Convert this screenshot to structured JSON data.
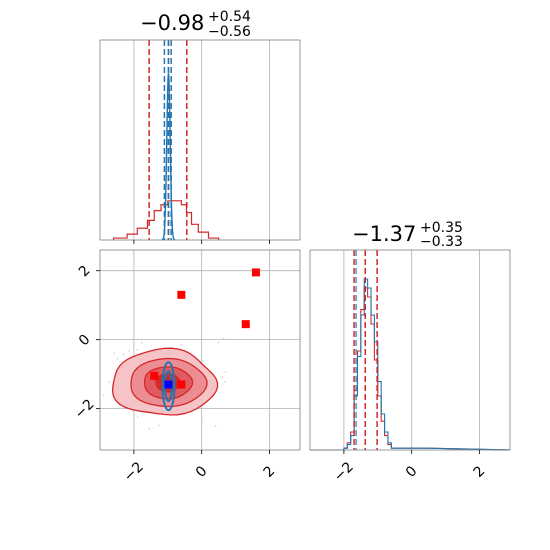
{
  "chart_data": {
    "type": "corner",
    "titles": [
      {
        "value": "−0.98",
        "plus": "+0.54",
        "minus": "−0.56"
      },
      {
        "value": "−1.37",
        "plus": "+0.35",
        "minus": "−0.33"
      }
    ],
    "xlim": [
      -3,
      2.9
    ],
    "ylim_2d": [
      -3.2,
      2.6
    ],
    "x_ticks": [
      -2,
      0,
      2
    ],
    "y_ticks": [
      -2,
      0,
      2
    ],
    "tick_labels": [
      "−2",
      "0",
      "2"
    ],
    "grid": true,
    "colors": {
      "red": "#d62728",
      "blue": "#1f77b4",
      "scatter_red": "#ff0000",
      "truth_blue": "#0000ff",
      "grid": "#b0b0b0",
      "frame": "#808080"
    },
    "param1": {
      "red_lines": [
        -1.55,
        -0.98,
        -0.44
      ],
      "blue_lines": [
        -1.1,
        -0.98,
        -0.9
      ],
      "hist_bins": [
        -2.6,
        -2.2,
        -1.9,
        -1.6,
        -1.4,
        -1.2,
        -1.0,
        -0.8,
        -0.6,
        -0.45,
        -0.3,
        -0.1,
        0.2,
        0.5
      ],
      "red_hist": [
        0.01,
        0.03,
        0.06,
        0.1,
        0.15,
        0.18,
        0.2,
        0.2,
        0.18,
        0.14,
        0.08,
        0.04,
        0.01
      ],
      "blue_peak": {
        "center": -0.98,
        "width": 0.05,
        "height": 1.0
      }
    },
    "param2": {
      "red_lines": [
        -1.7,
        -1.37,
        -1.02
      ],
      "blue_lines": [
        -1.7
      ],
      "hist": [
        {
          "x": -3.0,
          "red": 0.0,
          "blue": 0.0
        },
        {
          "x": -2.0,
          "red": 0.01,
          "blue": 0.01
        },
        {
          "x": -1.9,
          "red": 0.04,
          "blue": 0.03
        },
        {
          "x": -1.8,
          "red": 0.1,
          "blue": 0.08
        },
        {
          "x": -1.7,
          "red": 0.33,
          "blue": 0.3
        },
        {
          "x": -1.6,
          "red": 0.55,
          "blue": 0.52
        },
        {
          "x": -1.5,
          "red": 0.78,
          "blue": 0.75
        },
        {
          "x": -1.4,
          "red": 0.9,
          "blue": 0.95
        },
        {
          "x": -1.3,
          "red": 0.85,
          "blue": 0.9
        },
        {
          "x": -1.2,
          "red": 0.7,
          "blue": 0.75
        },
        {
          "x": -1.1,
          "red": 0.5,
          "blue": 0.6
        },
        {
          "x": -1.0,
          "red": 0.3,
          "blue": 0.38
        },
        {
          "x": -0.9,
          "red": 0.16,
          "blue": 0.2
        },
        {
          "x": -0.8,
          "red": 0.08,
          "blue": 0.1
        },
        {
          "x": -0.7,
          "red": 0.03,
          "blue": 0.04
        },
        {
          "x": -0.6,
          "red": 0.01,
          "blue": 0.01
        },
        {
          "x": 0.5,
          "red": 0.005,
          "blue": 0.005
        }
      ]
    },
    "scatter_points": [
      {
        "x": -0.6,
        "y": 1.3
      },
      {
        "x": 1.6,
        "y": 1.95
      },
      {
        "x": 1.3,
        "y": 0.45
      },
      {
        "x": -1.4,
        "y": -1.05
      },
      {
        "x": -0.6,
        "y": -1.3
      }
    ],
    "truth_point": {
      "x": -0.98,
      "y": -1.3
    }
  }
}
